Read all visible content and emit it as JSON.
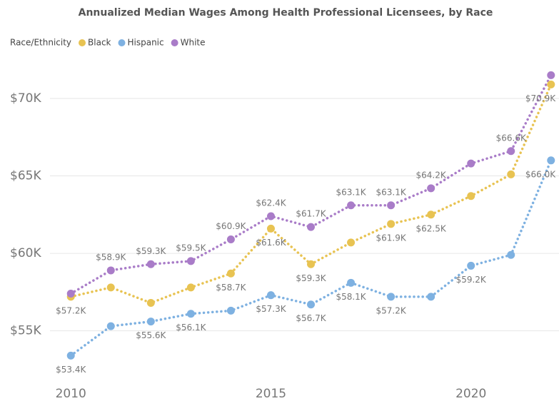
{
  "chart_data": {
    "type": "line",
    "title": "Annualized Median Wages Among Health Professional Licensees, by Race",
    "legend_title": "Race/Ethnicity",
    "x": [
      2010,
      2011,
      2012,
      2013,
      2014,
      2015,
      2016,
      2017,
      2018,
      2019,
      2020,
      2021,
      2022
    ],
    "series": [
      {
        "name": "Black",
        "color": "#e8c352",
        "values": [
          57200,
          57800,
          56800,
          57800,
          58700,
          61600,
          59300,
          60700,
          61900,
          62500,
          63700,
          65100,
          70900
        ],
        "value_labels": [
          "$57.2K",
          null,
          null,
          null,
          "$58.7K",
          "$61.6K",
          "$59.3K",
          null,
          "$61.9K",
          "$62.5K",
          null,
          null,
          "$70.9K"
        ]
      },
      {
        "name": "Hispanic",
        "color": "#7eb1e1",
        "values": [
          53400,
          55300,
          55600,
          56100,
          56300,
          57300,
          56700,
          58100,
          57200,
          57200,
          59200,
          59900,
          66000
        ],
        "value_labels": [
          "$53.4K",
          null,
          "$55.6K",
          "$56.1K",
          null,
          "$57.3K",
          "$56.7K",
          "$58.1K",
          "$57.2K",
          null,
          "$59.2K",
          null,
          "$66.0K"
        ]
      },
      {
        "name": "White",
        "color": "#a97cc8",
        "values": [
          57400,
          58900,
          59300,
          59500,
          60900,
          62400,
          61700,
          63100,
          63100,
          64200,
          65800,
          66600,
          71500
        ],
        "value_labels": [
          null,
          "$58.9K",
          "$59.3K",
          "$59.5K",
          "$60.9K",
          "$62.4K",
          "$61.7K",
          "$63.1K",
          "$63.1K",
          "$64.2K",
          null,
          "$66.6K",
          null
        ]
      }
    ],
    "xlim": [
      2009.3,
      2022.2
    ],
    "xticks": [
      2010,
      2015,
      2020
    ],
    "ylim": [
      50100,
      72900
    ],
    "yticks": [
      {
        "value": 55000,
        "label": "$55K"
      },
      {
        "value": 60000,
        "label": "$60K"
      },
      {
        "value": 65000,
        "label": "$65K"
      },
      {
        "value": 70000,
        "label": "$70K"
      }
    ],
    "grid": true
  }
}
